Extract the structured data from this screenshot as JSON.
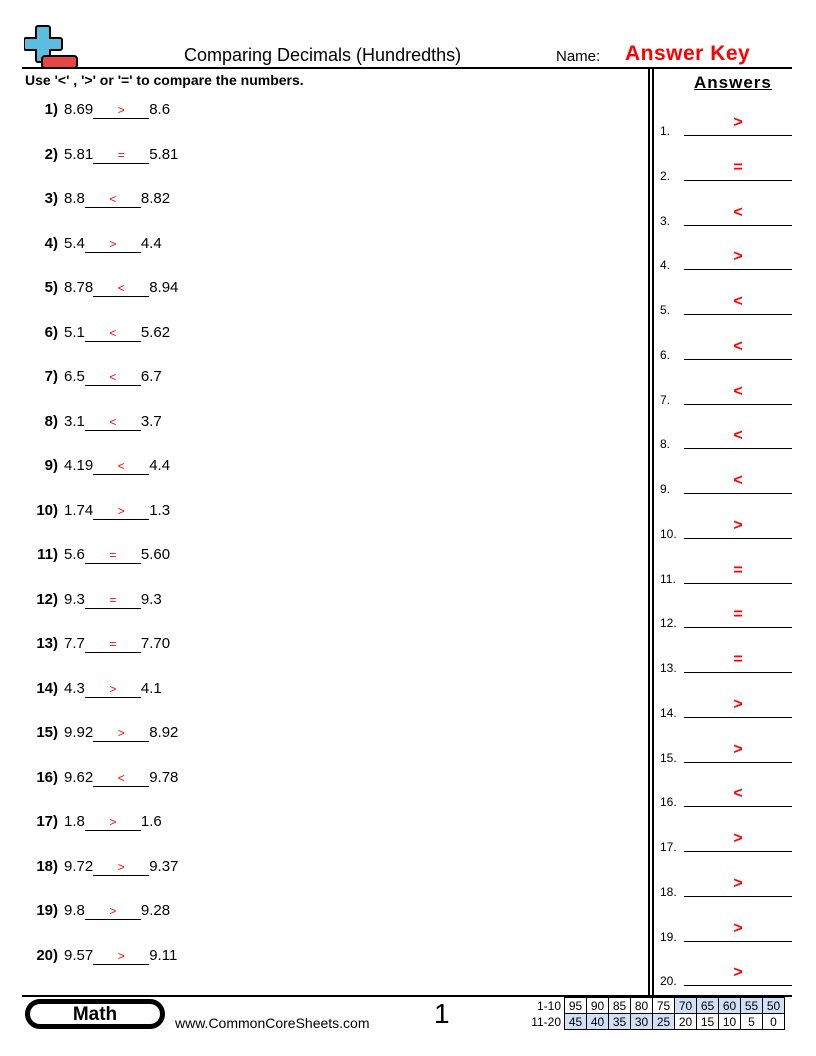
{
  "header": {
    "title": "Comparing Decimals (Hundredths)",
    "name_label": "Name:",
    "name_value": "Answer Key",
    "logo": "plus-minus-logo-icon"
  },
  "instructions": "Use '<' , '>' or '=' to compare the numbers.",
  "answers_heading": "Answers",
  "colors": {
    "answer": "#ff0000",
    "logo_blue": "#5bbde0",
    "logo_red": "#e84545",
    "score_highlight": "#cfe0f8"
  },
  "problems": [
    {
      "num": "1)",
      "a": "8.69",
      "ans": ">",
      "b": "8.6"
    },
    {
      "num": "2)",
      "a": "5.81",
      "ans": "=",
      "b": "5.81"
    },
    {
      "num": "3)",
      "a": "8.8",
      "ans": "<",
      "b": "8.82"
    },
    {
      "num": "4)",
      "a": "5.4",
      "ans": ">",
      "b": "4.4"
    },
    {
      "num": "5)",
      "a": "8.78",
      "ans": "<",
      "b": "8.94"
    },
    {
      "num": "6)",
      "a": "5.1",
      "ans": "<",
      "b": "5.62"
    },
    {
      "num": "7)",
      "a": "6.5",
      "ans": "<",
      "b": "6.7"
    },
    {
      "num": "8)",
      "a": "3.1",
      "ans": "<",
      "b": "3.7"
    },
    {
      "num": "9)",
      "a": "4.19",
      "ans": "<",
      "b": "4.4"
    },
    {
      "num": "10)",
      "a": "1.74",
      "ans": ">",
      "b": "1.3"
    },
    {
      "num": "11)",
      "a": "5.6",
      "ans": "=",
      "b": "5.60"
    },
    {
      "num": "12)",
      "a": "9.3",
      "ans": "=",
      "b": "9.3"
    },
    {
      "num": "13)",
      "a": "7.7",
      "ans": "=",
      "b": "7.70"
    },
    {
      "num": "14)",
      "a": "4.3",
      "ans": ">",
      "b": "4.1"
    },
    {
      "num": "15)",
      "a": "9.92",
      "ans": ">",
      "b": "8.92"
    },
    {
      "num": "16)",
      "a": "9.62",
      "ans": "<",
      "b": "9.78"
    },
    {
      "num": "17)",
      "a": "1.8",
      "ans": ">",
      "b": "1.6"
    },
    {
      "num": "18)",
      "a": "9.72",
      "ans": ">",
      "b": "9.37"
    },
    {
      "num": "19)",
      "a": "9.8",
      "ans": ">",
      "b": "9.28"
    },
    {
      "num": "20)",
      "a": "9.57",
      "ans": ">",
      "b": "9.11"
    }
  ],
  "answer_key": [
    {
      "num": "1.",
      "val": ">"
    },
    {
      "num": "2.",
      "val": "="
    },
    {
      "num": "3.",
      "val": "<"
    },
    {
      "num": "4.",
      "val": ">"
    },
    {
      "num": "5.",
      "val": "<"
    },
    {
      "num": "6.",
      "val": "<"
    },
    {
      "num": "7.",
      "val": "<"
    },
    {
      "num": "8.",
      "val": "<"
    },
    {
      "num": "9.",
      "val": "<"
    },
    {
      "num": "10.",
      "val": ">"
    },
    {
      "num": "11.",
      "val": "="
    },
    {
      "num": "12.",
      "val": "="
    },
    {
      "num": "13.",
      "val": "="
    },
    {
      "num": "14.",
      "val": ">"
    },
    {
      "num": "15.",
      "val": ">"
    },
    {
      "num": "16.",
      "val": "<"
    },
    {
      "num": "17.",
      "val": ">"
    },
    {
      "num": "18.",
      "val": ">"
    },
    {
      "num": "19.",
      "val": ">"
    },
    {
      "num": "20.",
      "val": ">"
    }
  ],
  "footer": {
    "subject": "Math",
    "url": "www.CommonCoreSheets.com",
    "page": "1",
    "score_rows": [
      {
        "label": "1-10",
        "scores": [
          "95",
          "90",
          "85",
          "80",
          "75",
          "70",
          "65",
          "60",
          "55",
          "50"
        ],
        "highlighted": [
          false,
          false,
          false,
          false,
          false,
          true,
          true,
          true,
          true,
          true
        ]
      },
      {
        "label": "11-20",
        "scores": [
          "45",
          "40",
          "35",
          "30",
          "25",
          "20",
          "15",
          "10",
          "5",
          "0"
        ],
        "highlighted": [
          true,
          true,
          true,
          true,
          true,
          false,
          false,
          false,
          false,
          false
        ]
      }
    ]
  }
}
